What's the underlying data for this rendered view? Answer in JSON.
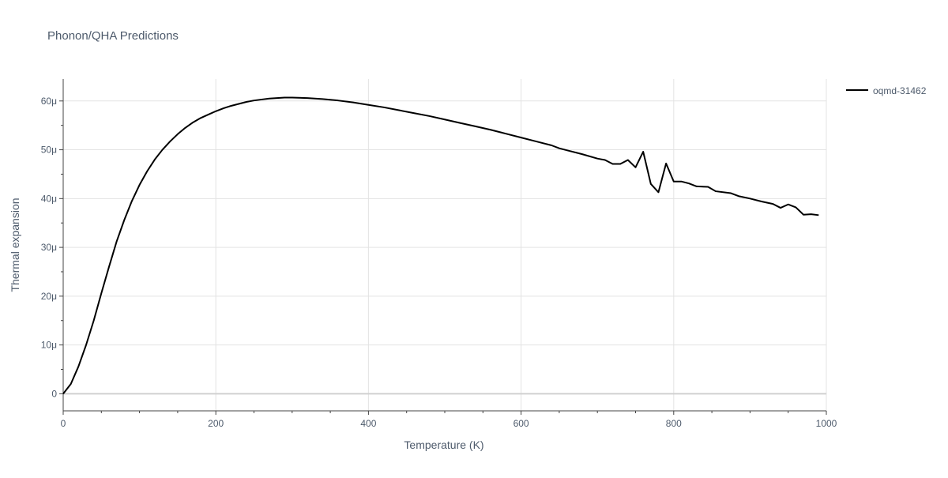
{
  "chart_data": {
    "type": "line",
    "title": "Phonon/QHA Predictions",
    "xlabel": "Temperature (K)",
    "ylabel": "Thermal expansion",
    "xlim": [
      0,
      1000
    ],
    "ylim": [
      -3.5e-06,
      6.45e-05
    ],
    "x_ticks": [
      0,
      200,
      400,
      600,
      800,
      1000
    ],
    "x_tick_labels": [
      "0",
      "200",
      "400",
      "600",
      "800",
      "1000"
    ],
    "y_ticks": [
      0,
      1e-05,
      2e-05,
      3e-05,
      4e-05,
      5e-05,
      6e-05
    ],
    "y_tick_labels": [
      "0",
      "10μ",
      "20μ",
      "30μ",
      "40μ",
      "50μ",
      "60μ"
    ],
    "grid": true,
    "legend_position": "top-right",
    "colors": {
      "series": "#000000",
      "grid": "#e3e3e3",
      "zeroline": "#d0d0d0",
      "text": "#4d5a6b"
    },
    "series": [
      {
        "name": "oqmd-31462",
        "color": "#000000",
        "points": [
          [
            0,
            0.0
          ],
          [
            10,
            2e-06
          ],
          [
            20,
            5.6e-06
          ],
          [
            30,
            1e-05
          ],
          [
            40,
            1.5e-05
          ],
          [
            50,
            2.06e-05
          ],
          [
            60,
            2.6e-05
          ],
          [
            70,
            3.12e-05
          ],
          [
            80,
            3.56e-05
          ],
          [
            90,
            3.95e-05
          ],
          [
            100,
            4.28e-05
          ],
          [
            110,
            4.56e-05
          ],
          [
            120,
            4.8e-05
          ],
          [
            130,
            5e-05
          ],
          [
            140,
            5.17e-05
          ],
          [
            150,
            5.32e-05
          ],
          [
            160,
            5.45e-05
          ],
          [
            170,
            5.56e-05
          ],
          [
            180,
            5.65e-05
          ],
          [
            190,
            5.72e-05
          ],
          [
            200,
            5.79e-05
          ],
          [
            210,
            5.85e-05
          ],
          [
            220,
            5.9e-05
          ],
          [
            230,
            5.94e-05
          ],
          [
            240,
            5.98e-05
          ],
          [
            250,
            6.01e-05
          ],
          [
            260,
            6.03e-05
          ],
          [
            270,
            6.05e-05
          ],
          [
            280,
            6.06e-05
          ],
          [
            290,
            6.07e-05
          ],
          [
            300,
            6.07e-05
          ],
          [
            320,
            6.06e-05
          ],
          [
            340,
            6.04e-05
          ],
          [
            360,
            6.01e-05
          ],
          [
            380,
            5.97e-05
          ],
          [
            400,
            5.92e-05
          ],
          [
            420,
            5.87e-05
          ],
          [
            440,
            5.81e-05
          ],
          [
            460,
            5.75e-05
          ],
          [
            480,
            5.69e-05
          ],
          [
            500,
            5.62e-05
          ],
          [
            520,
            5.55e-05
          ],
          [
            540,
            5.48e-05
          ],
          [
            560,
            5.41e-05
          ],
          [
            580,
            5.33e-05
          ],
          [
            600,
            5.25e-05
          ],
          [
            620,
            5.17e-05
          ],
          [
            640,
            5.09e-05
          ],
          [
            650,
            5.03e-05
          ],
          [
            660,
            4.99e-05
          ],
          [
            680,
            4.91e-05
          ],
          [
            700,
            4.82e-05
          ],
          [
            710,
            4.79e-05
          ],
          [
            720,
            4.71e-05
          ],
          [
            730,
            4.71e-05
          ],
          [
            740,
            4.79e-05
          ],
          [
            750,
            4.64e-05
          ],
          [
            760,
            4.96e-05
          ],
          [
            770,
            4.3e-05
          ],
          [
            780,
            4.13e-05
          ],
          [
            790,
            4.72e-05
          ],
          [
            800,
            4.35e-05
          ],
          [
            810,
            4.35e-05
          ],
          [
            820,
            4.31e-05
          ],
          [
            830,
            4.25e-05
          ],
          [
            845,
            4.24e-05
          ],
          [
            855,
            4.15e-05
          ],
          [
            875,
            4.11e-05
          ],
          [
            885,
            4.05e-05
          ],
          [
            900,
            4e-05
          ],
          [
            915,
            3.94e-05
          ],
          [
            930,
            3.89e-05
          ],
          [
            940,
            3.81e-05
          ],
          [
            950,
            3.88e-05
          ],
          [
            960,
            3.82e-05
          ],
          [
            970,
            3.67e-05
          ],
          [
            980,
            3.68e-05
          ],
          [
            990,
            3.66e-05
          ]
        ]
      }
    ]
  }
}
